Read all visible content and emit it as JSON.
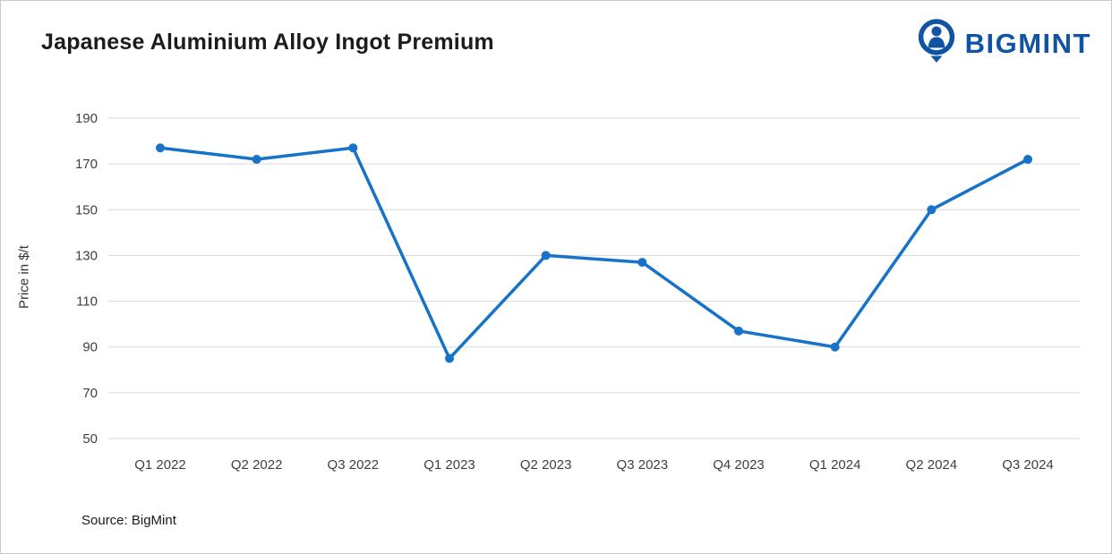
{
  "header": {
    "title": "Japanese Aluminium Alloy Ingot Premium",
    "brand": "BIGMINT"
  },
  "footer": {
    "source": "Source: BigMint"
  },
  "chart_data": {
    "type": "line",
    "title": "Japanese Aluminium Alloy Ingot Premium",
    "categories": [
      "Q1 2022",
      "Q2 2022",
      "Q3 2022",
      "Q1 2023",
      "Q2 2023",
      "Q3 2023",
      "Q4 2023",
      "Q1 2024",
      "Q2 2024",
      "Q3 2024"
    ],
    "series": [
      {
        "name": "Japanese Aluminium Alloy Ingot Premium",
        "values": [
          177,
          172,
          177,
          85,
          130,
          127,
          97,
          90,
          150,
          172
        ]
      }
    ],
    "xlabel": "",
    "ylabel": "Price in $/t",
    "ylim": [
      50,
      190
    ],
    "ytick_step": 20,
    "grid": true,
    "legend_position": "none",
    "line_color": "#1673c8",
    "grid_color": "#d9d9d9",
    "tick_color": "#404040"
  }
}
